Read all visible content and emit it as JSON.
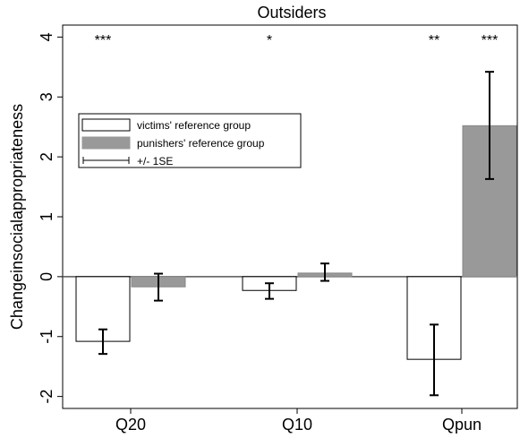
{
  "chart_data": {
    "type": "bar",
    "title": "Outsiders",
    "ylabel": "Changeinsocialappropriateness",
    "xlabel": "",
    "ylim": [
      -2.2,
      4.2
    ],
    "yticks": [
      -2,
      -1,
      0,
      1,
      2,
      3,
      4
    ],
    "categories": [
      "Q20",
      "Q10",
      "Qpun"
    ],
    "series": [
      {
        "name": "victims' reference group",
        "color": "#ffffff",
        "values": [
          -1.08,
          -0.23,
          -1.38
        ],
        "se_low": [
          -1.29,
          -0.37,
          -1.98
        ],
        "se_high": [
          -0.88,
          -0.11,
          -0.8
        ]
      },
      {
        "name": "punishers' reference group",
        "color": "#999999",
        "values": [
          -0.17,
          0.06,
          2.52
        ],
        "se_low": [
          -0.4,
          -0.07,
          1.63
        ],
        "se_high": [
          0.05,
          0.22,
          3.42
        ]
      }
    ],
    "significance": [
      {
        "category": "Q20",
        "series": 0,
        "label": "***"
      },
      {
        "category": "Q10",
        "series": 0,
        "label": "*"
      },
      {
        "category": "Qpun",
        "series": 0,
        "label": "**"
      },
      {
        "category": "Qpun",
        "series": 1,
        "label": "***"
      }
    ],
    "legend": {
      "placement": "upper-left",
      "entries": [
        "victims' reference group",
        "punishers' reference group",
        "+/- 1SE"
      ]
    },
    "grid": false
  }
}
